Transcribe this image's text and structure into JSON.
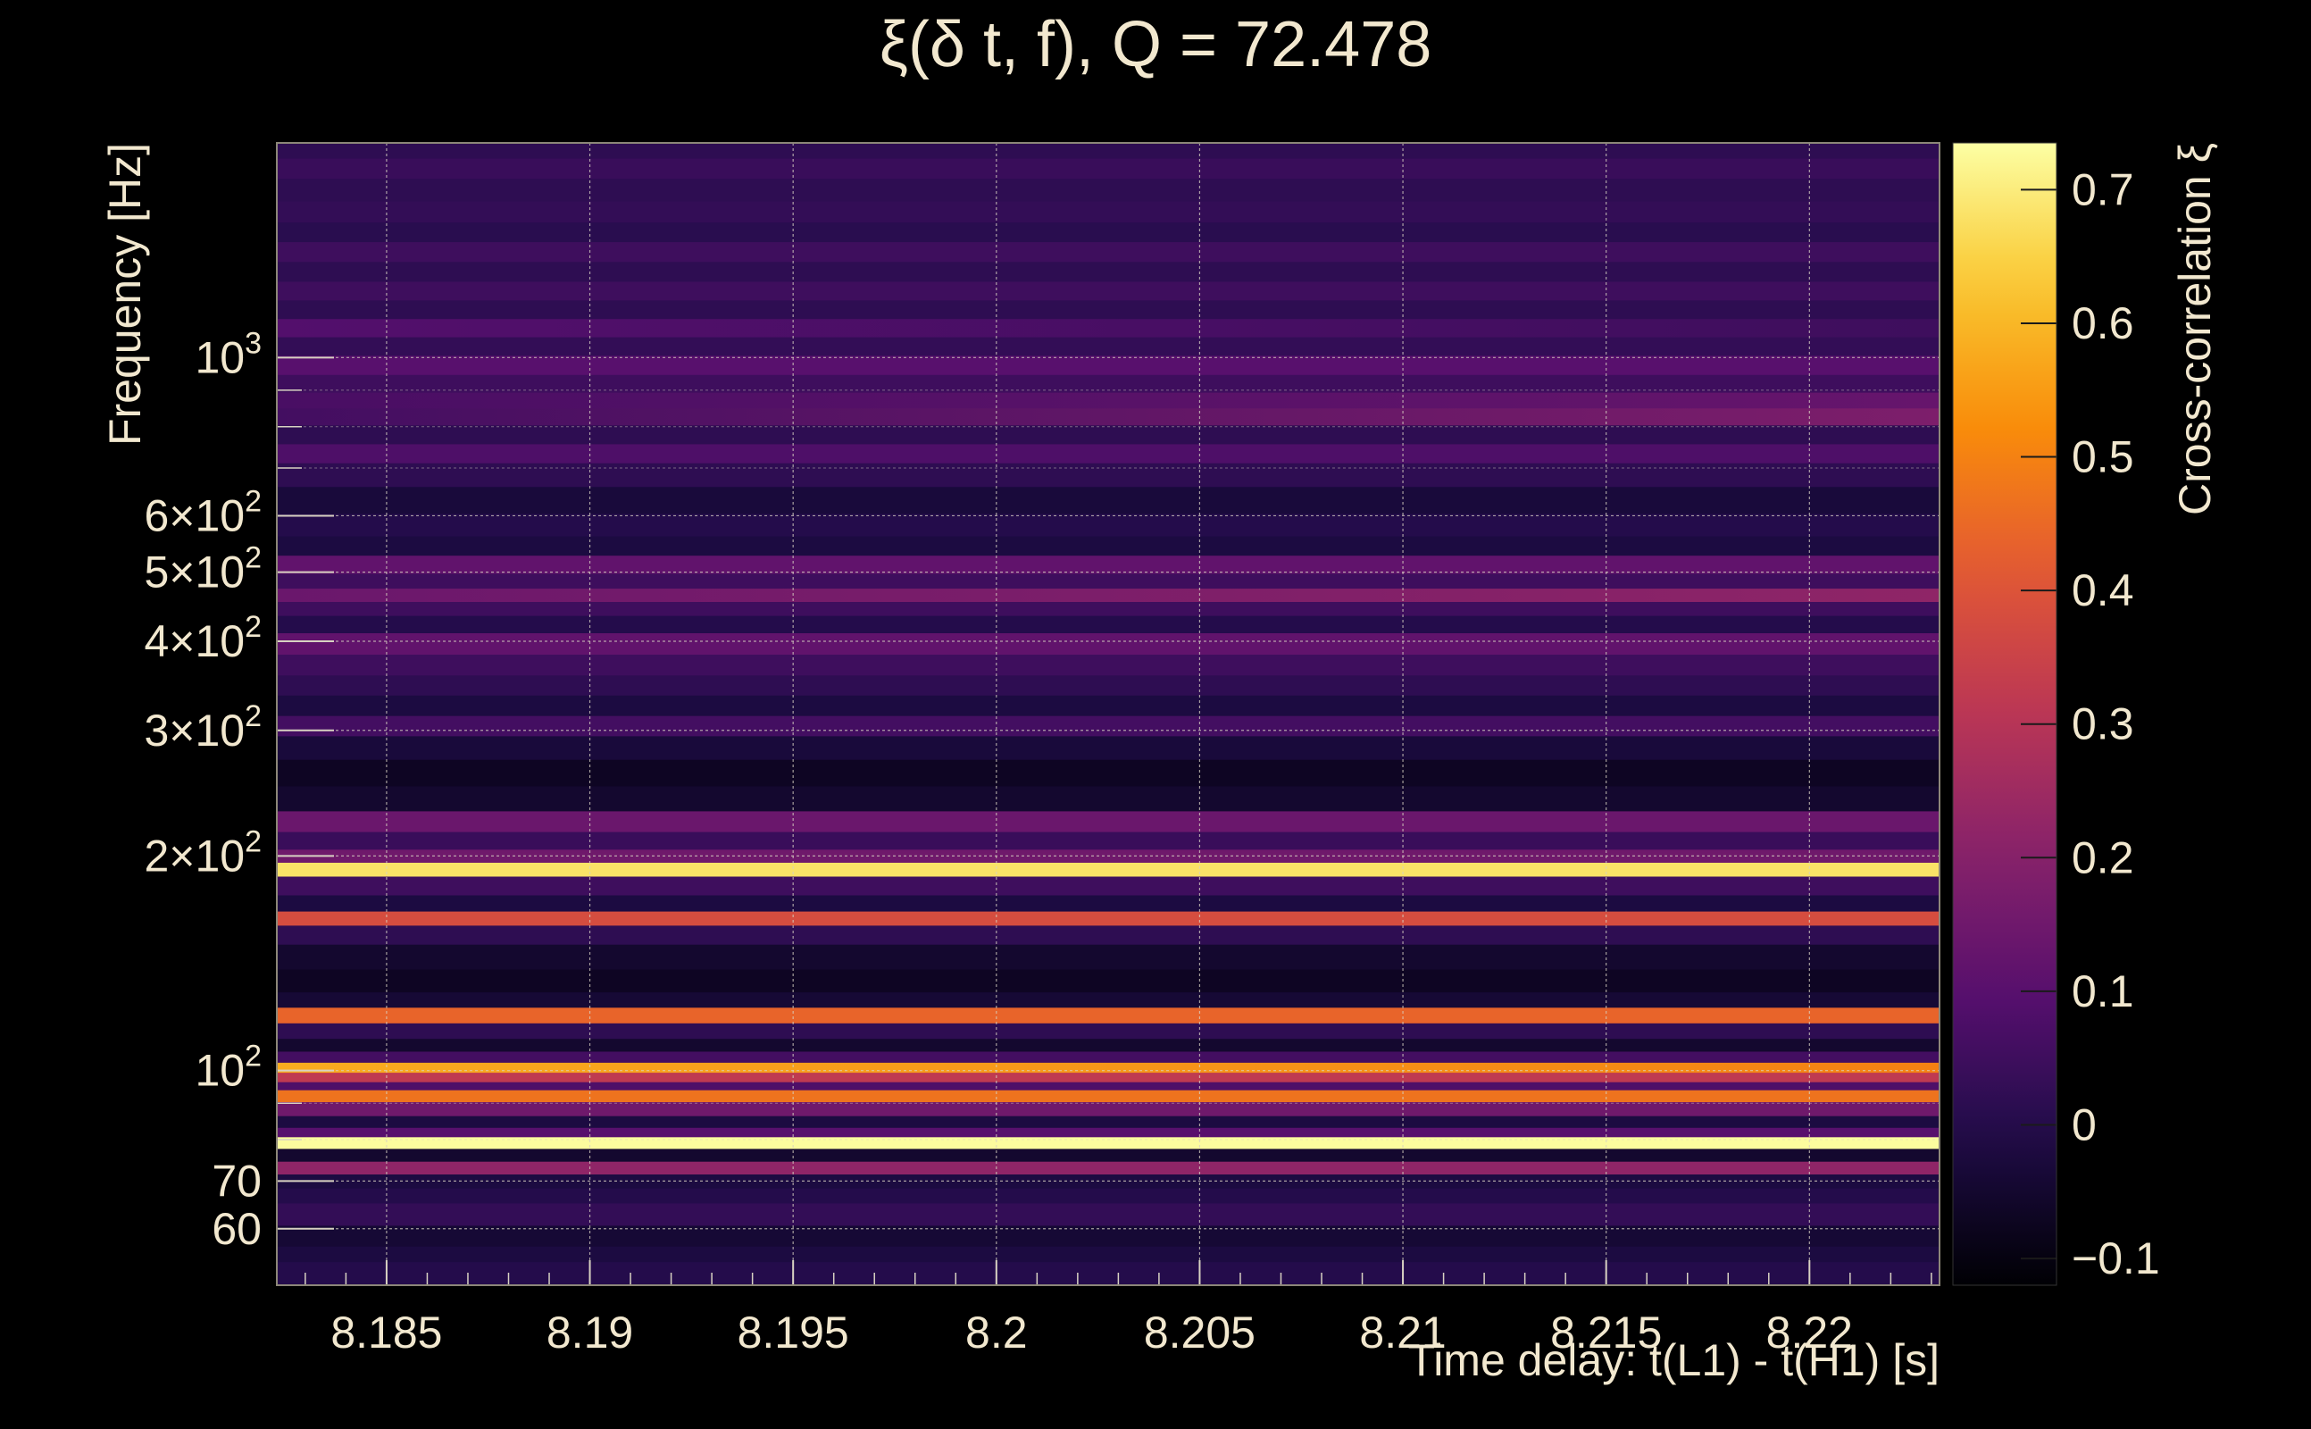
{
  "chart_data": {
    "type": "heatmap",
    "title": "ξ(δ t, f), Q = 72.478",
    "xlabel": "Time delay: t(L1) - t(H1) [s]",
    "ylabel": "Frequency [Hz]",
    "colorbar_label": "Cross-correlation ξ",
    "xlim": [
      8.1823,
      8.2232
    ],
    "ylim": [
      50,
      2000
    ],
    "yscale": "log",
    "clim": [
      -0.12,
      0.735
    ],
    "colormap": "inferno",
    "grid": true,
    "x_ticks": [
      8.185,
      8.19,
      8.195,
      8.2,
      8.205,
      8.21,
      8.215,
      8.22
    ],
    "x_tick_labels": [
      "8.185",
      "8.19",
      "8.195",
      "8.2",
      "8.205",
      "8.21",
      "8.215",
      "8.22"
    ],
    "y_ticks": [
      60,
      70,
      100,
      200,
      300,
      400,
      500,
      600,
      1000
    ],
    "y_tick_labels": [
      {
        "base": "60",
        "exp": ""
      },
      {
        "base": "70",
        "exp": ""
      },
      {
        "base": "10",
        "exp": "2"
      },
      {
        "base": "2×10",
        "exp": "2"
      },
      {
        "base": "3×10",
        "exp": "2"
      },
      {
        "base": "4×10",
        "exp": "2"
      },
      {
        "base": "5×10",
        "exp": "2"
      },
      {
        "base": "6×10",
        "exp": "2"
      },
      {
        "base": "10",
        "exp": "3"
      }
    ],
    "colorbar_ticks": [
      -0.1,
      0,
      0.1,
      0.2,
      0.3,
      0.4,
      0.5,
      0.6,
      0.7
    ],
    "colorbar_tick_labels": [
      "−0.1",
      "0",
      "0.1",
      "0.2",
      "0.3",
      "0.4",
      "0.5",
      "0.6",
      "0.7"
    ],
    "bands": [
      {
        "f": 52.5,
        "v": 0.0
      },
      {
        "f": 55.5,
        "v": -0.02
      },
      {
        "f": 58.0,
        "v": -0.04
      },
      {
        "f": 63.5,
        "v": 0.03
      },
      {
        "f": 67.0,
        "v": 0.0
      },
      {
        "f": 70.0,
        "v": -0.02
      },
      {
        "f": 73.3,
        "v": 0.22
      },
      {
        "f": 76.0,
        "v": -0.05
      },
      {
        "f": 79.6,
        "v": 0.73
      },
      {
        "f": 82.0,
        "v": 0.1
      },
      {
        "f": 84.5,
        "v": -0.02
      },
      {
        "f": 88.5,
        "v": 0.15
      },
      {
        "f": 92.5,
        "v": 0.47
      },
      {
        "f": 95.5,
        "v": 0.08
      },
      {
        "f": 97.5,
        "v": 0.32
      },
      {
        "f": 101.5,
        "v": 0.58,
        "v_end": 0.5
      },
      {
        "f": 104.0,
        "v": 0.06
      },
      {
        "f": 109.0,
        "v": -0.05
      },
      {
        "f": 113.0,
        "v": 0.02
      },
      {
        "f": 120.5,
        "v": 0.44
      },
      {
        "f": 125.0,
        "v": -0.04
      },
      {
        "f": 133.0,
        "v": -0.07
      },
      {
        "f": 145.0,
        "v": -0.05
      },
      {
        "f": 156.0,
        "v": 0.02
      },
      {
        "f": 164.0,
        "v": 0.38
      },
      {
        "f": 171.0,
        "v": -0.02
      },
      {
        "f": 182.0,
        "v": 0.05
      },
      {
        "f": 193.0,
        "v": 0.68
      },
      {
        "f": 199.0,
        "v": 0.15
      },
      {
        "f": 210.0,
        "v": 0.04
      },
      {
        "f": 223.0,
        "v": 0.14
      },
      {
        "f": 240.0,
        "v": -0.05
      },
      {
        "f": 262.0,
        "v": -0.07
      },
      {
        "f": 285.0,
        "v": -0.03
      },
      {
        "f": 305.0,
        "v": 0.06
      },
      {
        "f": 325.0,
        "v": -0.02
      },
      {
        "f": 348.0,
        "v": 0.02
      },
      {
        "f": 370.0,
        "v": 0.05
      },
      {
        "f": 398.0,
        "v": 0.12
      },
      {
        "f": 425.0,
        "v": 0.0
      },
      {
        "f": 445.0,
        "v": 0.05
      },
      {
        "f": 465.0,
        "v": 0.14,
        "v_end": 0.22
      },
      {
        "f": 485.0,
        "v": 0.05
      },
      {
        "f": 512.0,
        "v": 0.12
      },
      {
        "f": 545.0,
        "v": -0.02
      },
      {
        "f": 580.0,
        "v": 0.0
      },
      {
        "f": 630.0,
        "v": -0.03
      },
      {
        "f": 690.0,
        "v": 0.02
      },
      {
        "f": 735.0,
        "v": 0.08
      },
      {
        "f": 780.0,
        "v": 0.02
      },
      {
        "f": 830.0,
        "v": 0.06,
        "v_end": 0.18
      },
      {
        "f": 870.0,
        "v": 0.07,
        "v_end": 0.13
      },
      {
        "f": 920.0,
        "v": 0.05
      },
      {
        "f": 975.0,
        "v": 0.1
      },
      {
        "f": 1040.0,
        "v": 0.03
      },
      {
        "f": 1100.0,
        "v": 0.09,
        "v_end": 0.05
      },
      {
        "f": 1170.0,
        "v": 0.02
      },
      {
        "f": 1240.0,
        "v": 0.05
      },
      {
        "f": 1320.0,
        "v": 0.02
      },
      {
        "f": 1410.0,
        "v": 0.05
      },
      {
        "f": 1500.0,
        "v": 0.01
      },
      {
        "f": 1600.0,
        "v": 0.03
      },
      {
        "f": 1720.0,
        "v": 0.02
      },
      {
        "f": 1850.0,
        "v": 0.04
      },
      {
        "f": 1960.0,
        "v": 0.02
      }
    ]
  }
}
